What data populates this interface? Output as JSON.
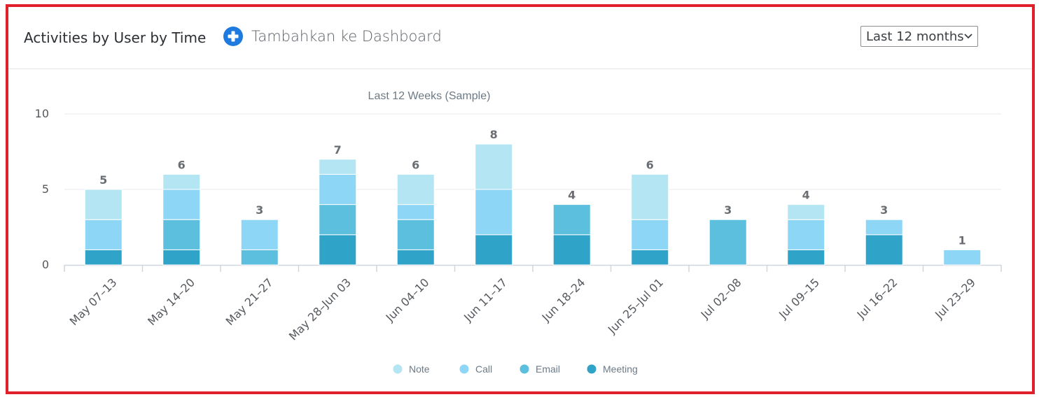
{
  "header": {
    "title": "Activities by User by Time",
    "add_dashboard_label": "Tambahkan ke Dashboard",
    "range_select": {
      "selected": "Last 12 months"
    }
  },
  "icons": {
    "add": "plus-circle-icon",
    "dropdown": "chevron-down-icon"
  },
  "colors": {
    "frame_border": "#e0202a",
    "add_icon": "#1f7ae0",
    "Note": "#b3e5f3",
    "Call": "#8ed6f6",
    "Email": "#5bbfdd",
    "Meeting": "#2fa3c8"
  },
  "chart_data": {
    "type": "bar",
    "stacked": true,
    "title": "Last 12 Weeks (Sample)",
    "xlabel": "",
    "ylabel": "",
    "ylim": [
      0,
      10
    ],
    "yticks": [
      0,
      5,
      10
    ],
    "grid": true,
    "legend_position": "bottom",
    "categories": [
      "May 07–13",
      "May 14–20",
      "May 21–27",
      "May 28–Jun 03",
      "Jun 04–10",
      "Jun 11–17",
      "Jun 18–24",
      "Jun 25–Jul 01",
      "Jul 02–08",
      "Jul 09–15",
      "Jul 16–22",
      "Jul 23–29"
    ],
    "series": [
      {
        "name": "Meeting",
        "values": [
          1,
          1,
          0,
          2,
          1,
          2,
          2,
          1,
          0,
          1,
          2,
          0
        ]
      },
      {
        "name": "Email",
        "values": [
          0,
          2,
          1,
          2,
          2,
          0,
          2,
          0,
          3,
          0,
          0,
          0
        ]
      },
      {
        "name": "Call",
        "values": [
          2,
          2,
          2,
          2,
          1,
          3,
          0,
          2,
          0,
          2,
          1,
          1
        ]
      },
      {
        "name": "Note",
        "values": [
          2,
          1,
          0,
          1,
          2,
          3,
          0,
          3,
          0,
          1,
          0,
          0
        ]
      }
    ],
    "totals": [
      5,
      6,
      3,
      7,
      6,
      8,
      4,
      6,
      3,
      4,
      3,
      1
    ],
    "legend_order": [
      "Note",
      "Call",
      "Email",
      "Meeting"
    ]
  }
}
